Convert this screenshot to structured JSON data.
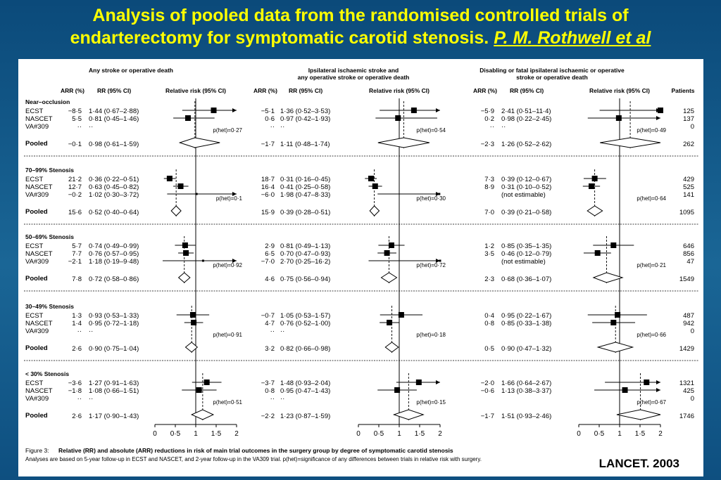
{
  "slide": {
    "title_line1": "Analysis of pooled data from the randomised controlled trials of",
    "title_line2": "endarterectomy for symptomatic carotid stenosis.",
    "title_ref": "P. M. Rothwell et al",
    "source": "LANCET. 2003"
  },
  "chart_data": {
    "type": "forest",
    "caption_label": "Figure 3:",
    "caption_bold": "Relative (RR) and absolute (ARR) reductions in risk of main trial outcomes in the surgery group by degree of symptomatic carotid stenosis",
    "caption_note": "Analyses are based on 5-year follow-up in ECST and NASCET, and 2-year follow-up in the VA309 trial. p(het)=significance of any differences between trials in relative risk with surgery.",
    "col_headers": {
      "arr": "ARR (%)",
      "rr": "RR (95% CI)",
      "plot": "Relative risk (95% CI)",
      "patients": "Patients"
    },
    "x_axis": {
      "ticks": [
        "0",
        "0·5",
        "1",
        "1·5",
        "2"
      ],
      "range": [
        0,
        2
      ]
    },
    "outcomes": [
      {
        "title": [
          "Any stroke or operative death"
        ],
        "groups": [
          {
            "rows": [
              {
                "arr": "−8·5",
                "rr": "1·44 (0·67–2·88)",
                "est": 1.44,
                "lo": 0.67,
                "hi": 2.88
              },
              {
                "arr": "5·5",
                "rr": "0·81 (0·45–1·46)",
                "est": 0.81,
                "lo": 0.45,
                "hi": 1.46
              },
              {
                "arr": "··",
                "rr": "··"
              }
            ],
            "pooled": {
              "arr": "−0·1",
              "rr": "0·98 (0·61–1·59)",
              "est": 0.98,
              "lo": 0.61,
              "hi": 1.59
            },
            "phet": "p(het)=0·27"
          },
          {
            "rows": [
              {
                "arr": "21·2",
                "rr": "0·36 (0·22–0·51)",
                "est": 0.36,
                "lo": 0.22,
                "hi": 0.51
              },
              {
                "arr": "12·7",
                "rr": "0·63 (0·45–0·82)",
                "est": 0.63,
                "lo": 0.45,
                "hi": 0.82
              },
              {
                "arr": "−0·2",
                "rr": "1·02 (0·30–3·72)",
                "est": 1.02,
                "lo": 0.3,
                "hi": 3.72
              }
            ],
            "pooled": {
              "arr": "15·6",
              "rr": "0·52 (0·40–0·64)",
              "est": 0.52,
              "lo": 0.4,
              "hi": 0.64
            },
            "phet": "p(het)=0·1"
          },
          {
            "rows": [
              {
                "arr": "5·7",
                "rr": "0·74 (0·49–0·99)",
                "est": 0.74,
                "lo": 0.49,
                "hi": 0.99
              },
              {
                "arr": "7·7",
                "rr": "0·76 (0·57–0·95)",
                "est": 0.76,
                "lo": 0.57,
                "hi": 0.95
              },
              {
                "arr": "−2·1",
                "rr": "1·18 (0·19–9·48)",
                "est": 1.18,
                "lo": 0.19,
                "hi": 9.48
              }
            ],
            "pooled": {
              "arr": "7·8",
              "rr": "0·72 (0·58–0·86)",
              "est": 0.72,
              "lo": 0.58,
              "hi": 0.86
            },
            "phet": "p(het)=0·92"
          },
          {
            "rows": [
              {
                "arr": "1·3",
                "rr": "0·93 (0·53–1·33)",
                "est": 0.93,
                "lo": 0.53,
                "hi": 1.33
              },
              {
                "arr": "1·4",
                "rr": "0·95 (0·72–1·18)",
                "est": 0.95,
                "lo": 0.72,
                "hi": 1.18
              },
              {
                "arr": "··",
                "rr": "··"
              }
            ],
            "pooled": {
              "arr": "2·6",
              "rr": "0·90 (0·75–1·04)",
              "est": 0.9,
              "lo": 0.75,
              "hi": 1.04
            },
            "phet": "p(het)=0·91"
          },
          {
            "rows": [
              {
                "arr": "−3·6",
                "rr": "1·27 (0·91–1·63)",
                "est": 1.27,
                "lo": 0.91,
                "hi": 1.63
              },
              {
                "arr": "−1·8",
                "rr": "1·08 (0·66–1·51)",
                "est": 1.08,
                "lo": 0.66,
                "hi": 1.51
              },
              {
                "arr": "··",
                "rr": "··"
              }
            ],
            "pooled": {
              "arr": "2·6",
              "rr": "1·17 (0·90–1·43)",
              "est": 1.17,
              "lo": 0.9,
              "hi": 1.43
            },
            "phet": "p(het)=0·51"
          }
        ]
      },
      {
        "title": [
          "Ipsilateral ischaemic stroke and",
          "any operative stroke or operative death"
        ],
        "groups": [
          {
            "rows": [
              {
                "arr": "−5·1",
                "rr": "1·36 (0·52–3·53)",
                "est": 1.36,
                "lo": 0.52,
                "hi": 3.53
              },
              {
                "arr": "0·6",
                "rr": "0·97 (0·42–1·93)",
                "est": 0.97,
                "lo": 0.42,
                "hi": 1.93
              },
              {
                "arr": "··",
                "rr": "··"
              }
            ],
            "pooled": {
              "arr": "−1·7",
              "rr": "1·11 (0·48–1·74)",
              "est": 1.11,
              "lo": 0.48,
              "hi": 1.74
            },
            "phet": "p(het)=0·54"
          },
          {
            "rows": [
              {
                "arr": "18·7",
                "rr": "0·31 (0·16–0·45)",
                "est": 0.31,
                "lo": 0.16,
                "hi": 0.45
              },
              {
                "arr": "16·4",
                "rr": "0·41 (0·25–0·58)",
                "est": 0.41,
                "lo": 0.25,
                "hi": 0.58
              },
              {
                "arr": "−6·0",
                "rr": "1·98 (0·47–8·33)",
                "est": 1.98,
                "lo": 0.47,
                "hi": 8.33
              }
            ],
            "pooled": {
              "arr": "15·9",
              "rr": "0·39 (0·28–0·51)",
              "est": 0.39,
              "lo": 0.28,
              "hi": 0.51
            },
            "phet": "p(het)=0·30"
          },
          {
            "rows": [
              {
                "arr": "2·9",
                "rr": "0·81 (0·49–1·13)",
                "est": 0.81,
                "lo": 0.49,
                "hi": 1.13
              },
              {
                "arr": "6·5",
                "rr": "0·70 (0·47–0·93)",
                "est": 0.7,
                "lo": 0.47,
                "hi": 0.93
              },
              {
                "arr": "−7·0",
                "rr": "2·70 (0·25–16·2)",
                "est": 2.7,
                "lo": 0.25,
                "hi": 16.2
              }
            ],
            "pooled": {
              "arr": "4·6",
              "rr": "0·75 (0·56–0·94)",
              "est": 0.75,
              "lo": 0.56,
              "hi": 0.94
            },
            "phet": "p(het)=0·72"
          },
          {
            "rows": [
              {
                "arr": "−0·7",
                "rr": "1·05 (0·53–1·57)",
                "est": 1.05,
                "lo": 0.53,
                "hi": 1.57
              },
              {
                "arr": "4·7",
                "rr": "0·76 (0·52–1·00)",
                "est": 0.76,
                "lo": 0.52,
                "hi": 1.0
              },
              {
                "arr": "··",
                "rr": "··"
              }
            ],
            "pooled": {
              "arr": "3·2",
              "rr": "0·82 (0·66–0·98)",
              "est": 0.82,
              "lo": 0.66,
              "hi": 0.98
            },
            "phet": "p(het)=0·18"
          },
          {
            "rows": [
              {
                "arr": "−3·7",
                "rr": "1·48 (0·93–2·04)",
                "est": 1.48,
                "lo": 0.93,
                "hi": 2.04
              },
              {
                "arr": "0·8",
                "rr": "0·95 (0·47–1·43)",
                "est": 0.95,
                "lo": 0.47,
                "hi": 1.43
              },
              {
                "arr": "··",
                "rr": "··"
              }
            ],
            "pooled": {
              "arr": "−2·2",
              "rr": "1·23 (0·87–1·59)",
              "est": 1.23,
              "lo": 0.87,
              "hi": 1.59
            },
            "phet": "p(het)=0·15"
          }
        ]
      },
      {
        "title": [
          "Disabling or fatal ipsilateral ischaemic or operative",
          "stroke or operative death"
        ],
        "groups": [
          {
            "rows": [
              {
                "arr": "−5·9",
                "rr": "2·41 (0·51–11·4)",
                "est": 2.41,
                "lo": 0.51,
                "hi": 11.4
              },
              {
                "arr": "0·2",
                "rr": "0·98 (0·22–2·45)",
                "est": 0.98,
                "lo": 0.22,
                "hi": 2.45
              },
              {
                "arr": "··",
                "rr": "··"
              }
            ],
            "pooled": {
              "arr": "−2·3",
              "rr": "1·26 (0·52–2·62)",
              "est": 1.26,
              "lo": 0.52,
              "hi": 2.62
            },
            "phet": "p(het)=0·49"
          },
          {
            "rows": [
              {
                "arr": "7·3",
                "rr": "0·39 (0·12–0·67)",
                "est": 0.39,
                "lo": 0.12,
                "hi": 0.67
              },
              {
                "arr": "8·9",
                "rr": "0·31 (0·10–0·52)",
                "est": 0.31,
                "lo": 0.1,
                "hi": 0.52
              },
              {
                "arr": "",
                "rr": "(not estimable)"
              }
            ],
            "pooled": {
              "arr": "7·0",
              "rr": "0·39 (0·21–0·58)",
              "est": 0.39,
              "lo": 0.21,
              "hi": 0.58
            },
            "phet": "p(het)=0·64"
          },
          {
            "rows": [
              {
                "arr": "1·2",
                "rr": "0·85 (0·35–1·35)",
                "est": 0.85,
                "lo": 0.35,
                "hi": 1.35
              },
              {
                "arr": "3·5",
                "rr": "0·46 (0·12–0·79)",
                "est": 0.46,
                "lo": 0.12,
                "hi": 0.79
              },
              {
                "arr": "",
                "rr": "(not estimable)"
              }
            ],
            "pooled": {
              "arr": "2·3",
              "rr": "0·68 (0·36–1·07)",
              "est": 0.68,
              "lo": 0.36,
              "hi": 1.07
            },
            "phet": "p(het)=0·21"
          },
          {
            "rows": [
              {
                "arr": "0·4",
                "rr": "0·95 (0·22–1·67)",
                "est": 0.95,
                "lo": 0.22,
                "hi": 1.67
              },
              {
                "arr": "0·8",
                "rr": "0·85 (0·33–1·38)",
                "est": 0.85,
                "lo": 0.33,
                "hi": 1.38
              },
              {
                "arr": "",
                "rr": ""
              }
            ],
            "pooled": {
              "arr": "0·5",
              "rr": "0·90 (0·47–1·32)",
              "est": 0.9,
              "lo": 0.47,
              "hi": 1.32
            },
            "phet": "p(het)=0·66"
          },
          {
            "rows": [
              {
                "arr": "−2·0",
                "rr": "1·66 (0·64–2·67)",
                "est": 1.66,
                "lo": 0.64,
                "hi": 2.67
              },
              {
                "arr": "−0·6",
                "rr": "1·13 (0·38–3·37)",
                "est": 1.13,
                "lo": 0.38,
                "hi": 3.37
              },
              {
                "arr": "",
                "rr": ""
              }
            ],
            "pooled": {
              "arr": "−1·7",
              "rr": "1·51 (0·93–2·46)",
              "est": 1.51,
              "lo": 0.93,
              "hi": 2.46
            },
            "phet": "p(het)=0·67"
          }
        ]
      }
    ],
    "subgroups": [
      {
        "label": "Near–occlusion",
        "trials": [
          "ECST",
          "NASCET",
          "VA#309"
        ],
        "patients": [
          "125",
          "137",
          "0"
        ],
        "pooled_patients": "262"
      },
      {
        "label": "70–99% Stenosis",
        "trials": [
          "ECST",
          "NASCET",
          "VA#309"
        ],
        "patients": [
          "429",
          "525",
          "141"
        ],
        "pooled_patients": "1095"
      },
      {
        "label": "50–69% Stenosis",
        "trials": [
          "ECST",
          "NASCET",
          "VA#309"
        ],
        "patients": [
          "646",
          "856",
          "47"
        ],
        "pooled_patients": "1549"
      },
      {
        "label": "30–49% Stenosis",
        "trials": [
          "ECST",
          "NASCET",
          "VA#309"
        ],
        "patients": [
          "487",
          "942",
          "0"
        ],
        "pooled_patients": "1429"
      },
      {
        "label": "< 30% Stenosis",
        "trials": [
          "ECST",
          "NASCET",
          "VA#309"
        ],
        "patients": [
          "1321",
          "425",
          "0"
        ],
        "pooled_patients": "1746"
      }
    ],
    "pooled_label": "Pooled"
  }
}
